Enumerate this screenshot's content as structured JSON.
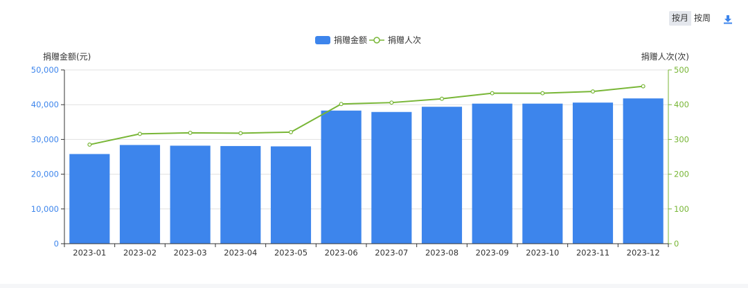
{
  "toolbar": {
    "by_month": "按月",
    "by_week": "按周",
    "download_icon": "download-icon"
  },
  "colors": {
    "bar": "#3d85ec",
    "line": "#78b636",
    "left_axis": "#3d85ec",
    "right_axis": "#78b636",
    "grid": "#e0e0e0"
  },
  "chart_data": {
    "type": "bar",
    "categories": [
      "2023-01",
      "2023-02",
      "2023-03",
      "2023-04",
      "2023-05",
      "2023-06",
      "2023-07",
      "2023-08",
      "2023-09",
      "2023-10",
      "2023-11",
      "2023-12"
    ],
    "series": [
      {
        "name": "捐赠金额",
        "type": "bar",
        "axis": "left",
        "values": [
          25800,
          28400,
          28200,
          28100,
          28000,
          38300,
          37900,
          39400,
          40300,
          40300,
          40600,
          41800
        ]
      },
      {
        "name": "捐赠人次",
        "type": "line",
        "axis": "right",
        "values": [
          285,
          316,
          319,
          318,
          321,
          402,
          406,
          417,
          433,
          433,
          438,
          453
        ]
      }
    ],
    "ylabel_left": "捐赠金额(元)",
    "ylabel_right": "捐赠人次(次)",
    "ylim_left": [
      0,
      50000
    ],
    "ylim_right": [
      0,
      500
    ],
    "yticks_left": [
      "0",
      "10,000",
      "20,000",
      "30,000",
      "40,000",
      "50,000"
    ],
    "yticks_right": [
      "0",
      "100",
      "200",
      "300",
      "400",
      "500"
    ],
    "legend_position": "top-center",
    "grid": true
  }
}
